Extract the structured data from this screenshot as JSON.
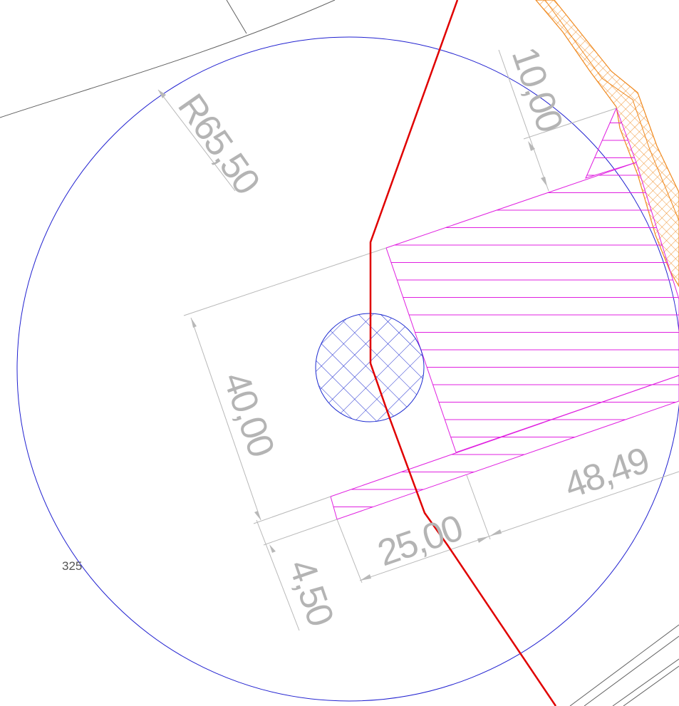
{
  "drawing": {
    "dimensions": {
      "radius": "R65,50",
      "offset_top": "10,00",
      "height": "40,00",
      "gap": "4,50",
      "width_short": "25,00",
      "width_long": "48,49"
    },
    "point_label": "325"
  },
  "colors": {
    "circle_outline": "#2020d0",
    "center_hatch": "#1c2ad0",
    "red_line": "#e00000",
    "magenta_hatch": "#e020e0",
    "orange_hatch": "#f08a20",
    "dimension": "#b4b4b4",
    "background_lines": "#606060"
  }
}
